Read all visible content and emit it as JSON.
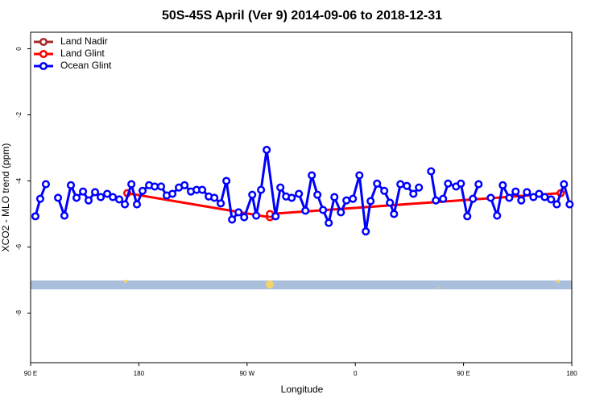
{
  "chart_data": {
    "type": "line",
    "title": "50S-45S April (Ver 9)   2014-09-06 to 2018-12-31",
    "x_label": "Longitude",
    "y_label": "XCO2 - MLO trend (ppm)",
    "xlim": [
      90,
      540
    ],
    "xticks": [
      {
        "value": 90,
        "label": "90 E"
      },
      {
        "value": 180,
        "label": "180"
      },
      {
        "value": 270,
        "label": "90 W"
      },
      {
        "value": 360,
        "label": "0"
      },
      {
        "value": 450,
        "label": "90 E"
      },
      {
        "value": 540,
        "label": "180"
      }
    ],
    "ylim": [
      -9.5,
      0.5
    ],
    "yticks": [
      0,
      -2,
      -4,
      -6,
      -8
    ],
    "legend": "topleft",
    "series": [
      {
        "name": "Land Nadir",
        "color": "#a52a2a",
        "x": [],
        "values": []
      },
      {
        "name": "Land Glint",
        "color": "#ff0000",
        "x": [
          170.4,
          289.0,
          289.0,
          530.8
        ],
        "values": [
          -4.37,
          -5.1,
          -5.0,
          -4.37
        ]
      },
      {
        "name": "Ocean Glint",
        "color": "#0000ff",
        "x": [
          94.0,
          98.0,
          102.7,
          107.4,
          112.8,
          118.1,
          123.5,
          128.2,
          133.6,
          138.2,
          143.6,
          148.3,
          153.7,
          158.4,
          163.7,
          168.4,
          173.8,
          178.4,
          183.1,
          188.5,
          193.2,
          198.5,
          203.2,
          207.9,
          213.3,
          218.0,
          223.3,
          228.0,
          232.7,
          238.1,
          242.8,
          248.1,
          252.8,
          257.5,
          262.9,
          267.6,
          274.3,
          277.6,
          281.6,
          286.3,
          293.7,
          297.7,
          302.4,
          307.1,
          313.1,
          318.5,
          323.8,
          328.5,
          333.2,
          337.9,
          342.6,
          348.0,
          352.6,
          358.0,
          363.4,
          368.7,
          372.7,
          378.1,
          384.1,
          388.8,
          392.2,
          397.5,
          402.9,
          408.3,
          412.9,
          417.6,
          423.0,
          427.0,
          433.0,
          437.1,
          443.8,
          447.8,
          453.1,
          457.8,
          462.5,
          467.2,
          472.6,
          477.9,
          482.6,
          488.0,
          493.3,
          498.0,
          502.7,
          508.1,
          512.8,
          517.5,
          522.8,
          527.5,
          533.5,
          538.2
        ],
        "values": [
          -5.07,
          -4.54,
          -4.1,
          null,
          -4.51,
          -5.05,
          -4.13,
          -4.51,
          -4.32,
          -4.59,
          -4.34,
          -4.49,
          -4.39,
          -4.49,
          -4.56,
          -4.71,
          -4.1,
          -4.71,
          -4.3,
          -4.13,
          -4.17,
          -4.17,
          -4.44,
          -4.39,
          -4.2,
          -4.13,
          -4.32,
          -4.27,
          -4.27,
          -4.47,
          -4.51,
          -4.68,
          -4.0,
          -5.17,
          -4.95,
          -5.1,
          -4.42,
          -5.05,
          -4.27,
          -3.06,
          -5.07,
          -4.2,
          -4.47,
          -4.51,
          -4.39,
          -4.9,
          -3.83,
          -4.42,
          -4.88,
          -5.27,
          -4.49,
          -4.95,
          -4.59,
          -4.54,
          -3.83,
          -5.53,
          -4.61,
          -4.08,
          -4.3,
          -4.66,
          -5.0,
          -4.1,
          -4.15,
          -4.39,
          -4.2,
          null,
          -3.71,
          -4.59,
          -4.54,
          -4.08,
          -4.17,
          -4.08,
          -5.07,
          -4.54,
          -4.1,
          null,
          -4.51,
          -5.05,
          -4.13,
          -4.51,
          -4.32,
          -4.59,
          -4.34,
          -4.49,
          -4.39,
          -4.49,
          -4.56,
          -4.71,
          -4.1,
          -4.71
        ]
      }
    ]
  }
}
